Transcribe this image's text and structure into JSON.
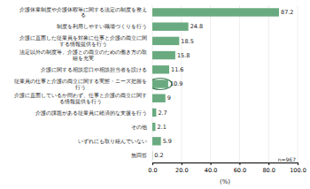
{
  "chart_data": {
    "type": "bar",
    "orientation": "horizontal",
    "categories": [
      "介護休業制度や介護休暇等に関する法定の制度を整え\nる",
      "制度を利用しやすい職場づくりを行う",
      "介護に直面した従業員を対象に仕事と介護の両立に関\nする情報提供を行う",
      "法定以外の制度等、介護との両立のための働き方の取\n組を充実",
      "介護に関する相談窓口や相談担当者を設ける",
      "従業員の仕事と介護の両立に関する実態・ニーズ把握を\n行う",
      "介護に直面しているか問わず、仕事と介護の両立に関す\nる情報提供を行う",
      "介護の課題がある従業員に経済的な支援を行う",
      "その他",
      "いずれにも取り組んでいない",
      "無回答"
    ],
    "values": [
      87.2,
      24.8,
      18.5,
      15.8,
      11.6,
      10.9,
      9.0,
      2.7,
      2.1,
      5.9,
      0.2
    ],
    "color": "#6aaa80",
    "data_labels": true,
    "xlabel": "(%)",
    "xlim": [
      0,
      100
    ],
    "xticks": [
      {
        "value": 0,
        "label": "0.0"
      },
      {
        "value": 20,
        "label": "20.0"
      },
      {
        "value": 40,
        "label": "40.0"
      },
      {
        "value": 60,
        "label": "60.0"
      },
      {
        "value": 80,
        "label": "80.0"
      },
      {
        "value": 100,
        "label": "100.0"
      }
    ],
    "grid": true,
    "annotations": [
      {
        "text": "n=967"
      },
      {
        "shape": "ellipse",
        "index": 5,
        "color": "#3a7a50"
      }
    ]
  }
}
